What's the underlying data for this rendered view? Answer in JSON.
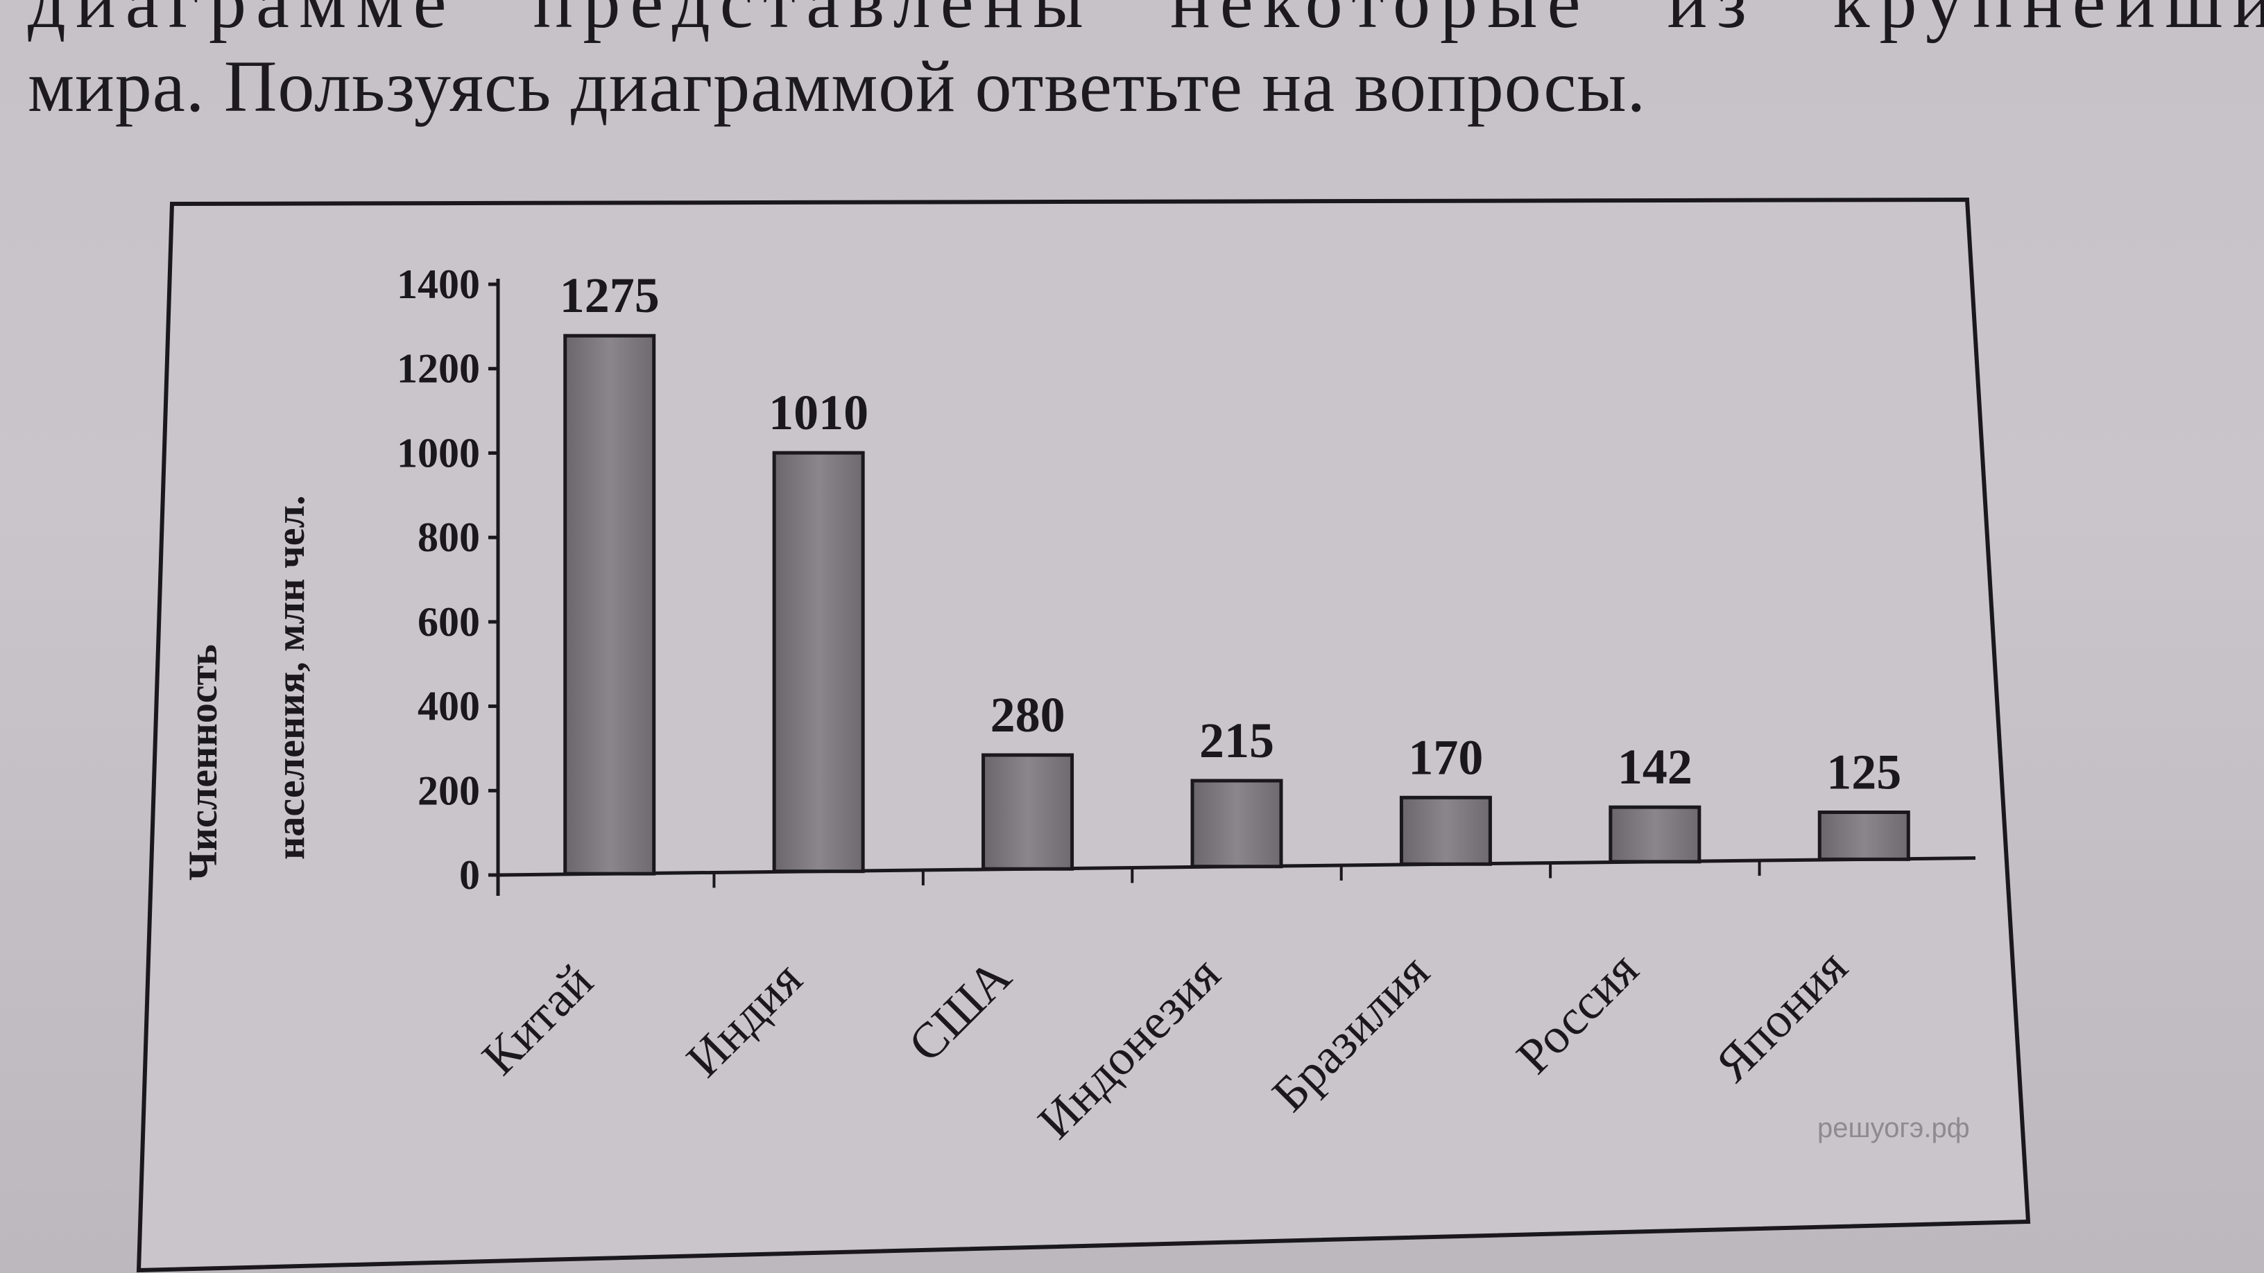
{
  "text": {
    "line1": "диаграмме представлены некоторые из крупнейших по чи",
    "line2": "мира. Пользуясь диаграммой ответьте на вопросы."
  },
  "colors": {
    "bar_fill": "#7c787e",
    "bar_fill_dark": "#5e5a60",
    "ink": "#1a181c",
    "paper": "#c8c4ca"
  },
  "chart_data": {
    "type": "bar",
    "categories": [
      "Китай",
      "Индия",
      "США",
      "Индонезия",
      "Бразилия",
      "Россия",
      "Япония"
    ],
    "values": [
      1275,
      1010,
      280,
      215,
      170,
      142,
      125
    ],
    "data_labels": [
      "1275",
      "1010",
      "280",
      "215",
      "170",
      "142",
      "125"
    ],
    "ylabel_line1": "Численность",
    "ylabel_line2": "населения, млн чел.",
    "yticks": [
      0,
      200,
      400,
      600,
      800,
      1000,
      1200,
      1400
    ],
    "ylim": [
      0,
      1400
    ],
    "grid": false,
    "legend": "none"
  },
  "watermark": "решуогэ.рф"
}
